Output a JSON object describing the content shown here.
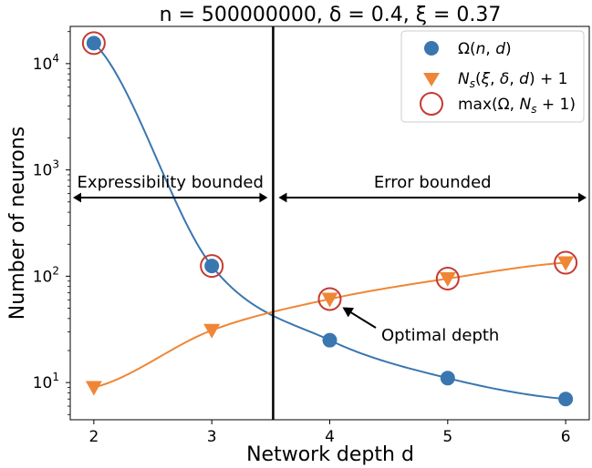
{
  "chart_data": {
    "type": "scatter",
    "title": "n = 500000000, δ = 0.4, ξ = 0.37",
    "xlabel": "Network depth d",
    "ylabel": "Number of neurons",
    "xlim": [
      1.8,
      6.2
    ],
    "ylim_log10": [
      0.65,
      4.35
    ],
    "yscale": "log",
    "x_ticks": [
      2,
      3,
      4,
      5,
      6
    ],
    "y_ticks": [
      {
        "value": 10,
        "label_base": "10",
        "label_exp": "1"
      },
      {
        "value": 100,
        "label_base": "10",
        "label_exp": "2"
      },
      {
        "value": 1000,
        "label_base": "10",
        "label_exp": "3"
      },
      {
        "value": 10000,
        "label_base": "10",
        "label_exp": "4"
      }
    ],
    "series": [
      {
        "name": "Ω(n, d)",
        "marker": "circle",
        "color": "#3a76af",
        "x": [
          2,
          3,
          4,
          5,
          6
        ],
        "y": [
          15600,
          125,
          25,
          11,
          7
        ]
      },
      {
        "name": "Ns(ξ, δ, d) + 1",
        "marker": "triangle-down",
        "color": "#ef8636",
        "x": [
          2,
          3,
          4,
          5,
          6
        ],
        "y": [
          9,
          31,
          61,
          95,
          134
        ]
      },
      {
        "name": "max(Ω, Ns + 1)",
        "marker": "open-circle",
        "color": "#c53a32",
        "x": [
          2,
          3,
          4,
          5,
          6
        ],
        "y": [
          15600,
          125,
          61,
          95,
          134
        ]
      }
    ],
    "curves": [
      {
        "series": "Ω(n, d)",
        "color": "#3a76af",
        "from_x": 2,
        "to_x": 6
      },
      {
        "series": "Ns(ξ, δ, d) + 1",
        "color": "#ef8636",
        "from_x": 2,
        "to_x": 6
      }
    ],
    "vertical_line_x": 3.52,
    "regions": [
      {
        "label": "Expressibility bounded",
        "from_x": 1.8,
        "to_x": 3.52
      },
      {
        "label": "Error bounded",
        "from_x": 3.52,
        "to_x": 6.2
      }
    ],
    "annotation": {
      "text": "Optimal depth",
      "target_x": 4,
      "target_y": 61
    },
    "legend_position": "top-right",
    "legend": [
      {
        "main": "Ω(",
        "italic_parts": [
          "n",
          "d"
        ],
        "marker": "circle"
      },
      {
        "main": "N",
        "marker": "triangle-down"
      },
      {
        "main": "max",
        "marker": "open-circle"
      }
    ]
  }
}
